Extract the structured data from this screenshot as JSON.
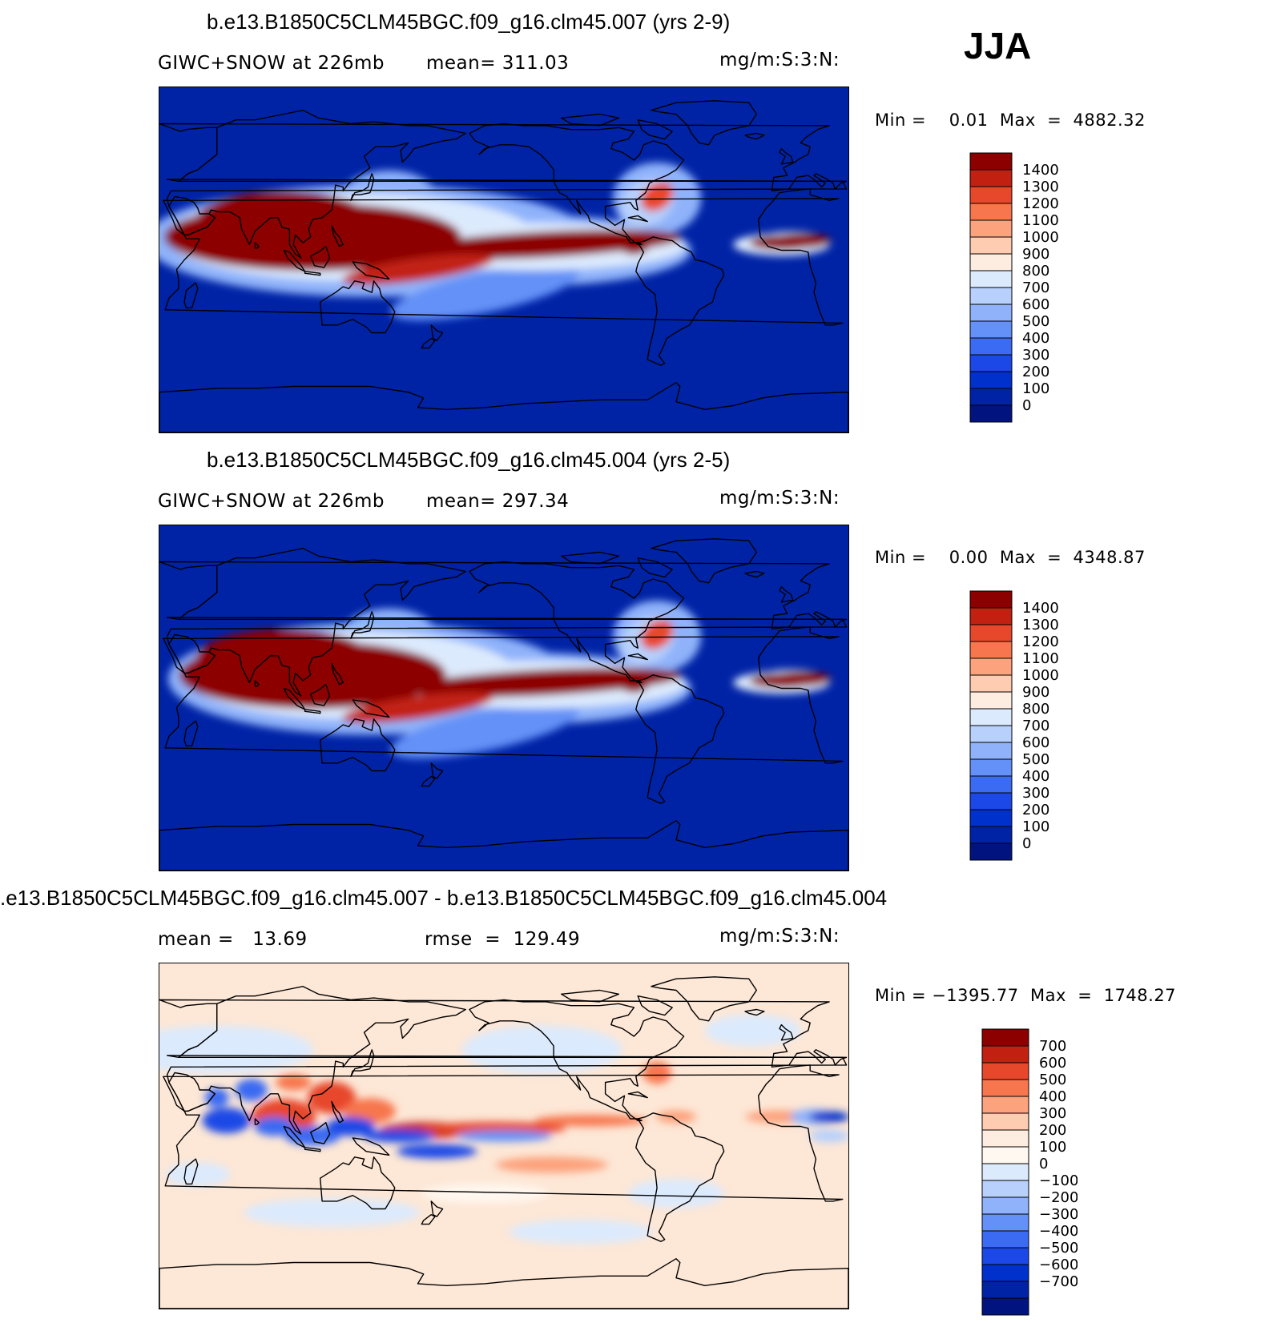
{
  "season": "JJA",
  "panels": [
    {
      "title": "b.e13.B1850C5CLM45BGC.f09_g16.clm45.007 (yrs 2-9)",
      "subtitle_left": "GIWC+SNOW at 226mb",
      "subtitle_mid": "mean= 311.03",
      "units": "mg/m:S:3:N:",
      "minmax": "Min =    0.01  Max  =  4882.32"
    },
    {
      "title": "b.e13.B1850C5CLM45BGC.f09_g16.clm45.004 (yrs 2-5)",
      "subtitle_left": "GIWC+SNOW at 226mb",
      "subtitle_mid": "mean= 297.34",
      "units": "mg/m:S:3:N:",
      "minmax": "Min =    0.00  Max  =  4348.87"
    },
    {
      "title": ".e13.B1850C5CLM45BGC.f09_g16.clm45.007 - b.e13.B1850C5CLM45BGC.f09_g16.clm45.004",
      "subtitle_left": "mean =   13.69",
      "subtitle_mid": "rmse  =  129.49",
      "units": "mg/m:S:3:N:",
      "minmax": "Min = −1395.77  Max  =  1748.27"
    }
  ],
  "colors": {
    "seq": [
      "#00137f",
      "#0023a6",
      "#0031cc",
      "#1b48e6",
      "#3b6bf2",
      "#6491f7",
      "#8fb2fa",
      "#b7d0fc",
      "#dceafd",
      "#fdece0",
      "#fdccb1",
      "#fca27c",
      "#f7764e",
      "#e7472b",
      "#c22112",
      "#8c0000"
    ],
    "div": [
      "#00137f",
      "#0023a6",
      "#0031cc",
      "#1b48e6",
      "#3b6bf2",
      "#6491f7",
      "#8fb2fa",
      "#b7d0fc",
      "#dceafd",
      "#fff8f0",
      "#fdece0",
      "#fdccb1",
      "#fca27c",
      "#f7764e",
      "#e7472b",
      "#c22112",
      "#8c0000"
    ],
    "map_bg_abs": "#0023a6",
    "map_bg_diff": "#fde7d6"
  },
  "chart_data": [
    {
      "type": "heatmap",
      "title": "b.e13.B1850C5CLM45BGC.f09_g16.clm45.007 (yrs 2-9)",
      "variable": "GIWC+SNOW at 226mb",
      "units": "mg/m:S:3:N:",
      "mean": 311.03,
      "min": 0.01,
      "max": 4882.32,
      "contour_levels": [
        0,
        100,
        200,
        300,
        400,
        500,
        600,
        700,
        800,
        900,
        1000,
        1100,
        1200,
        1300,
        1400
      ],
      "colorbar_labels": [
        "1400",
        "1300",
        "1200",
        "1100",
        "1000",
        "900",
        "800",
        "700",
        "600",
        "500",
        "400",
        "300",
        "200",
        "100",
        "0"
      ]
    },
    {
      "type": "heatmap",
      "title": "b.e13.B1850C5CLM45BGC.f09_g16.clm45.004 (yrs 2-5)",
      "variable": "GIWC+SNOW at 226mb",
      "units": "mg/m:S:3:N:",
      "mean": 297.34,
      "min": 0.0,
      "max": 4348.87,
      "contour_levels": [
        0,
        100,
        200,
        300,
        400,
        500,
        600,
        700,
        800,
        900,
        1000,
        1100,
        1200,
        1300,
        1400
      ],
      "colorbar_labels": [
        "1400",
        "1300",
        "1200",
        "1100",
        "1000",
        "900",
        "800",
        "700",
        "600",
        "500",
        "400",
        "300",
        "200",
        "100",
        "0"
      ]
    },
    {
      "type": "heatmap",
      "title": ".e13.B1850C5CLM45BGC.f09_g16.clm45.007 - b.e13.B1850C5CLM45BGC.f09_g16.clm45.004",
      "units": "mg/m:S:3:N:",
      "mean": 13.69,
      "rmse": 129.49,
      "min": -1395.77,
      "max": 1748.27,
      "contour_levels": [
        -700,
        -600,
        -500,
        -400,
        -300,
        -200,
        -100,
        0,
        100,
        200,
        300,
        400,
        500,
        600,
        700
      ],
      "colorbar_labels": [
        "700",
        "600",
        "500",
        "400",
        "300",
        "200",
        "100",
        "0",
        "−100",
        "−200",
        "−300",
        "−400",
        "−500",
        "−600",
        "−700"
      ]
    }
  ]
}
